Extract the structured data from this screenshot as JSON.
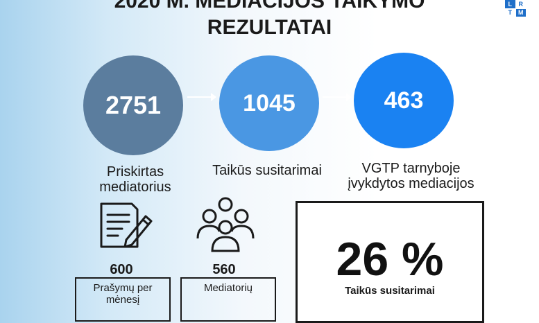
{
  "title": {
    "line1": "2020 M. MEDIACIJOS TAIKYMO",
    "line2": "REZULTATAI"
  },
  "logo": {
    "letters": [
      "L",
      "R",
      "T",
      "M"
    ]
  },
  "stats": [
    {
      "value": "2751",
      "label": "Priskirtas mediatorius"
    },
    {
      "value": "1045",
      "label": "Taikūs susitarimai"
    },
    {
      "value": "463",
      "label": "VGTP tarnyboje įvykdytos mediacijos"
    }
  ],
  "details": [
    {
      "icon": "document-pencil-icon",
      "value": "600",
      "label": "Prašymų per mėnesį"
    },
    {
      "icon": "people-group-icon",
      "value": "560",
      "label": "Mediatorių"
    }
  ],
  "highlight": {
    "value": "26 %",
    "label": "Taikūs susitarimai"
  },
  "colors": {
    "circle1": "#5b7d9e",
    "circle2": "#4a97e3",
    "circle3": "#1a82f2"
  }
}
